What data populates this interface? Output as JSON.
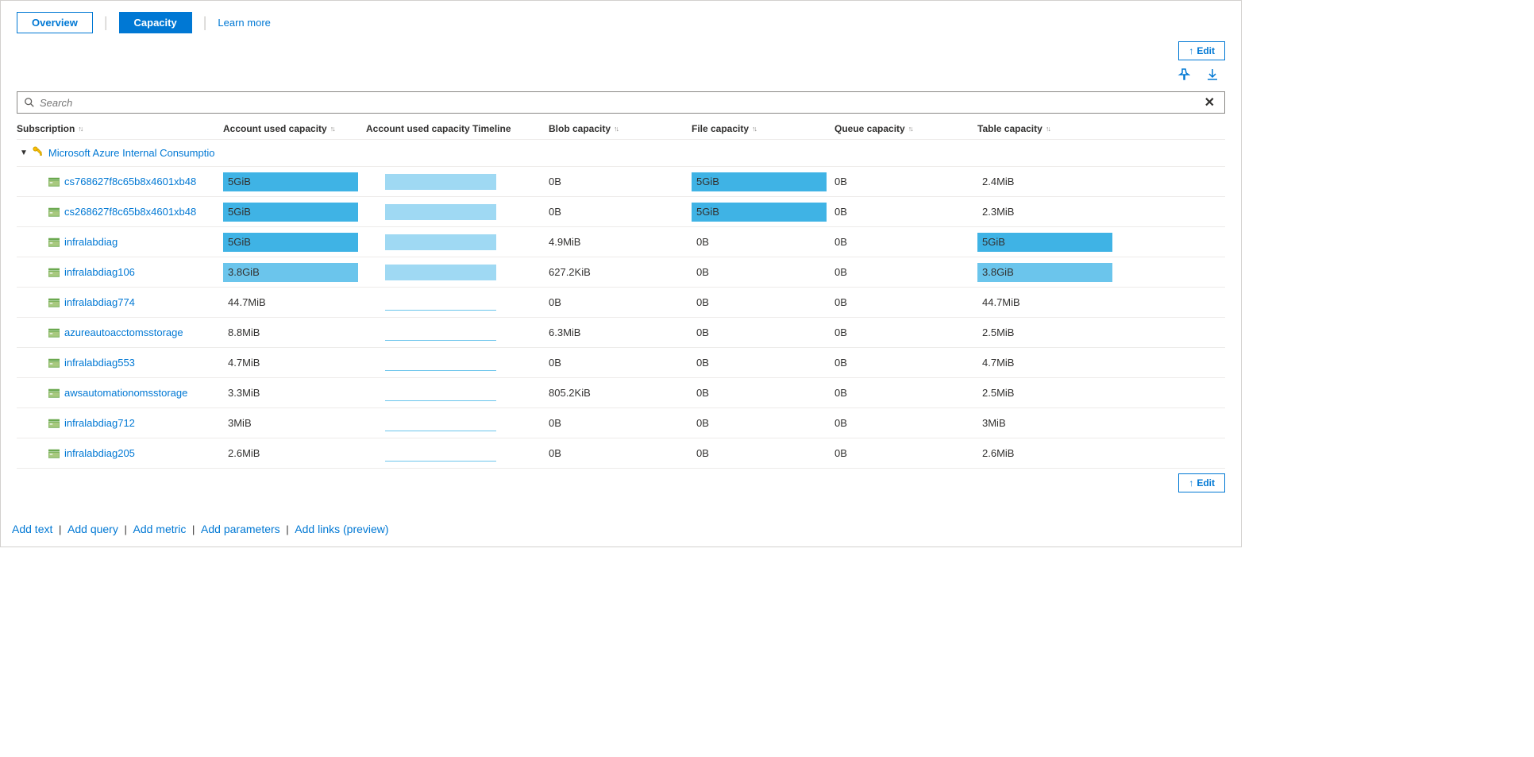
{
  "tabs": {
    "overview": "Overview",
    "capacity": "Capacity",
    "learn_more": "Learn more"
  },
  "edit_label": "Edit",
  "search": {
    "placeholder": "Search"
  },
  "columns": {
    "subscription": "Subscription",
    "account_used": "Account used capacity",
    "timeline": "Account used capacity Timeline",
    "blob": "Blob capacity",
    "file": "File capacity",
    "queue": "Queue capacity",
    "table": "Table capacity"
  },
  "group": {
    "label": "Microsoft Azure Internal Consumptio"
  },
  "colors": {
    "bar_full": "#3fb3e5",
    "bar_mid": "#6bc5ec",
    "bar_light": "#8fd3f1",
    "timeline_light": "#9fd9f3",
    "underline": "#6bc5ec",
    "link": "#0078d4"
  },
  "rows": [
    {
      "name": "cs768627f8c65b8x4601xb48",
      "used": {
        "text": "5GiB",
        "fill": 1.0,
        "color": "#3fb3e5"
      },
      "timeline": {
        "fill": 1.0
      },
      "blob": "0B",
      "file": {
        "text": "5GiB",
        "fill": 1.0,
        "color": "#3fb3e5"
      },
      "queue": "0B",
      "table": {
        "text": "2.4MiB",
        "fill": 0
      }
    },
    {
      "name": "cs268627f8c65b8x4601xb48",
      "used": {
        "text": "5GiB",
        "fill": 1.0,
        "color": "#3fb3e5"
      },
      "timeline": {
        "fill": 1.0
      },
      "blob": "0B",
      "file": {
        "text": "5GiB",
        "fill": 1.0,
        "color": "#3fb3e5"
      },
      "queue": "0B",
      "table": {
        "text": "2.3MiB",
        "fill": 0
      }
    },
    {
      "name": "infralabdiag",
      "used": {
        "text": "5GiB",
        "fill": 1.0,
        "color": "#3fb3e5"
      },
      "timeline": {
        "fill": 1.0
      },
      "blob": "4.9MiB",
      "file": {
        "text": "0B",
        "fill": 0
      },
      "queue": "0B",
      "table": {
        "text": "5GiB",
        "fill": 1.0,
        "color": "#3fb3e5"
      }
    },
    {
      "name": "infralabdiag106",
      "used": {
        "text": "3.8GiB",
        "fill": 1.0,
        "color": "#6bc5ec"
      },
      "timeline": {
        "fill": 1.0
      },
      "blob": "627.2KiB",
      "file": {
        "text": "0B",
        "fill": 0
      },
      "queue": "0B",
      "table": {
        "text": "3.8GiB",
        "fill": 1.0,
        "color": "#6bc5ec"
      }
    },
    {
      "name": "infralabdiag774",
      "used": {
        "text": "44.7MiB",
        "fill": 0
      },
      "timeline": {
        "fill": 0,
        "underline": true
      },
      "blob": "0B",
      "file": {
        "text": "0B",
        "fill": 0
      },
      "queue": "0B",
      "table": {
        "text": "44.7MiB",
        "fill": 0
      }
    },
    {
      "name": "azureautoacctomsstorage",
      "used": {
        "text": "8.8MiB",
        "fill": 0
      },
      "timeline": {
        "fill": 0,
        "underline": true
      },
      "blob": "6.3MiB",
      "file": {
        "text": "0B",
        "fill": 0
      },
      "queue": "0B",
      "table": {
        "text": "2.5MiB",
        "fill": 0
      }
    },
    {
      "name": "infralabdiag553",
      "used": {
        "text": "4.7MiB",
        "fill": 0
      },
      "timeline": {
        "fill": 0,
        "underline": true
      },
      "blob": "0B",
      "file": {
        "text": "0B",
        "fill": 0
      },
      "queue": "0B",
      "table": {
        "text": "4.7MiB",
        "fill": 0
      }
    },
    {
      "name": "awsautomationomsstorage",
      "used": {
        "text": "3.3MiB",
        "fill": 0
      },
      "timeline": {
        "fill": 0,
        "underline": true
      },
      "blob": "805.2KiB",
      "file": {
        "text": "0B",
        "fill": 0
      },
      "queue": "0B",
      "table": {
        "text": "2.5MiB",
        "fill": 0
      }
    },
    {
      "name": "infralabdiag712",
      "used": {
        "text": "3MiB",
        "fill": 0
      },
      "timeline": {
        "fill": 0,
        "underline": true
      },
      "blob": "0B",
      "file": {
        "text": "0B",
        "fill": 0
      },
      "queue": "0B",
      "table": {
        "text": "3MiB",
        "fill": 0
      }
    },
    {
      "name": "infralabdiag205",
      "used": {
        "text": "2.6MiB",
        "fill": 0
      },
      "timeline": {
        "fill": 0,
        "underline": true
      },
      "blob": "0B",
      "file": {
        "text": "0B",
        "fill": 0
      },
      "queue": "0B",
      "table": {
        "text": "2.6MiB",
        "fill": 0
      }
    }
  ],
  "footer": {
    "add_text": "Add text",
    "add_query": "Add query",
    "add_metric": "Add metric",
    "add_parameters": "Add parameters",
    "add_links": "Add links (preview)"
  }
}
